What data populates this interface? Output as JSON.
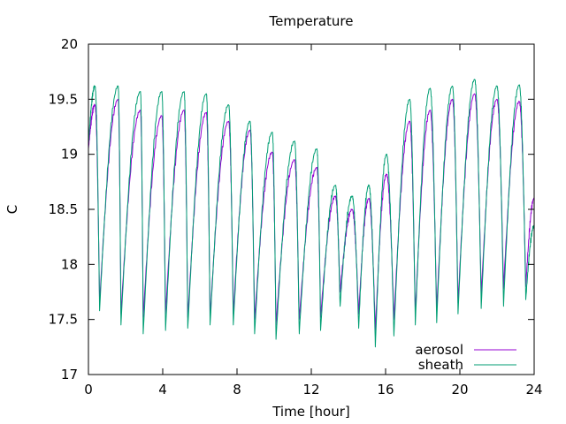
{
  "chart_data": {
    "type": "line",
    "title": "Temperature",
    "xlabel": "Time [hour]",
    "ylabel": "C",
    "xlim": [
      0,
      24
    ],
    "ylim": [
      17,
      20
    ],
    "xticks": [
      0,
      4,
      8,
      12,
      16,
      20,
      24
    ],
    "yticks": [
      17,
      17.5,
      18,
      18.5,
      19,
      19.5,
      20
    ],
    "ytick_labels": [
      "17",
      "17.5",
      "18",
      "18.5",
      "19",
      "19.5",
      "20"
    ],
    "grid": false,
    "legend_position": "bottom-right",
    "series": [
      {
        "name": "aerosol",
        "color": "#9400d3",
        "cycle_period_hours": 1.2,
        "peaks": [
          {
            "t": 0.35,
            "v": 19.45
          },
          {
            "t": 1.6,
            "v": 19.5
          },
          {
            "t": 2.8,
            "v": 19.4
          },
          {
            "t": 3.95,
            "v": 19.35
          },
          {
            "t": 5.15,
            "v": 19.4
          },
          {
            "t": 6.35,
            "v": 19.38
          },
          {
            "t": 7.55,
            "v": 19.3
          },
          {
            "t": 8.7,
            "v": 19.22
          },
          {
            "t": 9.9,
            "v": 19.02
          },
          {
            "t": 11.1,
            "v": 18.95
          },
          {
            "t": 12.3,
            "v": 18.88
          },
          {
            "t": 13.3,
            "v": 18.62
          },
          {
            "t": 14.2,
            "v": 18.5
          },
          {
            "t": 15.1,
            "v": 18.6
          },
          {
            "t": 16.05,
            "v": 18.82
          },
          {
            "t": 17.3,
            "v": 19.3
          },
          {
            "t": 18.4,
            "v": 19.4
          },
          {
            "t": 19.6,
            "v": 19.5
          },
          {
            "t": 20.8,
            "v": 19.55
          },
          {
            "t": 22.0,
            "v": 19.5
          },
          {
            "t": 23.2,
            "v": 19.48
          },
          {
            "t": 24.0,
            "v": 18.6
          }
        ],
        "troughs": [
          {
            "t": 0.0,
            "v": 19.05
          },
          {
            "t": 0.6,
            "v": 17.65
          },
          {
            "t": 1.75,
            "v": 17.55
          },
          {
            "t": 2.95,
            "v": 17.52
          },
          {
            "t": 4.15,
            "v": 17.55
          },
          {
            "t": 5.35,
            "v": 17.52
          },
          {
            "t": 6.55,
            "v": 17.52
          },
          {
            "t": 7.8,
            "v": 17.55
          },
          {
            "t": 8.95,
            "v": 17.5
          },
          {
            "t": 10.1,
            "v": 17.45
          },
          {
            "t": 11.35,
            "v": 17.5
          },
          {
            "t": 12.5,
            "v": 17.52
          },
          {
            "t": 13.55,
            "v": 17.75
          },
          {
            "t": 14.55,
            "v": 17.55
          },
          {
            "t": 15.45,
            "v": 17.4
          },
          {
            "t": 16.45,
            "v": 17.5
          },
          {
            "t": 17.6,
            "v": 17.55
          },
          {
            "t": 18.75,
            "v": 17.58
          },
          {
            "t": 19.9,
            "v": 17.65
          },
          {
            "t": 21.15,
            "v": 17.72
          },
          {
            "t": 22.35,
            "v": 17.78
          },
          {
            "t": 23.55,
            "v": 17.8
          }
        ]
      },
      {
        "name": "sheath",
        "color": "#009e73",
        "cycle_period_hours": 1.2,
        "peaks": [
          {
            "t": 0.35,
            "v": 19.62
          },
          {
            "t": 1.6,
            "v": 19.62
          },
          {
            "t": 2.8,
            "v": 19.57
          },
          {
            "t": 3.95,
            "v": 19.57
          },
          {
            "t": 5.15,
            "v": 19.57
          },
          {
            "t": 6.35,
            "v": 19.55
          },
          {
            "t": 7.55,
            "v": 19.45
          },
          {
            "t": 8.7,
            "v": 19.3
          },
          {
            "t": 9.9,
            "v": 19.2
          },
          {
            "t": 11.1,
            "v": 19.12
          },
          {
            "t": 12.3,
            "v": 19.05
          },
          {
            "t": 13.3,
            "v": 18.72
          },
          {
            "t": 14.2,
            "v": 18.62
          },
          {
            "t": 15.1,
            "v": 18.72
          },
          {
            "t": 16.05,
            "v": 19.0
          },
          {
            "t": 17.3,
            "v": 19.5
          },
          {
            "t": 18.4,
            "v": 19.6
          },
          {
            "t": 19.6,
            "v": 19.62
          },
          {
            "t": 20.8,
            "v": 19.68
          },
          {
            "t": 22.0,
            "v": 19.62
          },
          {
            "t": 23.2,
            "v": 19.63
          },
          {
            "t": 24.0,
            "v": 18.35
          }
        ],
        "troughs": [
          {
            "t": 0.0,
            "v": 19.1
          },
          {
            "t": 0.6,
            "v": 17.58
          },
          {
            "t": 1.75,
            "v": 17.45
          },
          {
            "t": 2.95,
            "v": 17.37
          },
          {
            "t": 4.15,
            "v": 17.4
          },
          {
            "t": 5.35,
            "v": 17.42
          },
          {
            "t": 6.55,
            "v": 17.45
          },
          {
            "t": 7.8,
            "v": 17.45
          },
          {
            "t": 8.95,
            "v": 17.37
          },
          {
            "t": 10.1,
            "v": 17.32
          },
          {
            "t": 11.35,
            "v": 17.37
          },
          {
            "t": 12.5,
            "v": 17.4
          },
          {
            "t": 13.55,
            "v": 17.62
          },
          {
            "t": 14.55,
            "v": 17.42
          },
          {
            "t": 15.45,
            "v": 17.25
          },
          {
            "t": 16.45,
            "v": 17.35
          },
          {
            "t": 17.6,
            "v": 17.45
          },
          {
            "t": 18.75,
            "v": 17.47
          },
          {
            "t": 19.9,
            "v": 17.55
          },
          {
            "t": 21.15,
            "v": 17.6
          },
          {
            "t": 22.35,
            "v": 17.62
          },
          {
            "t": 23.55,
            "v": 17.68
          }
        ]
      }
    ]
  }
}
